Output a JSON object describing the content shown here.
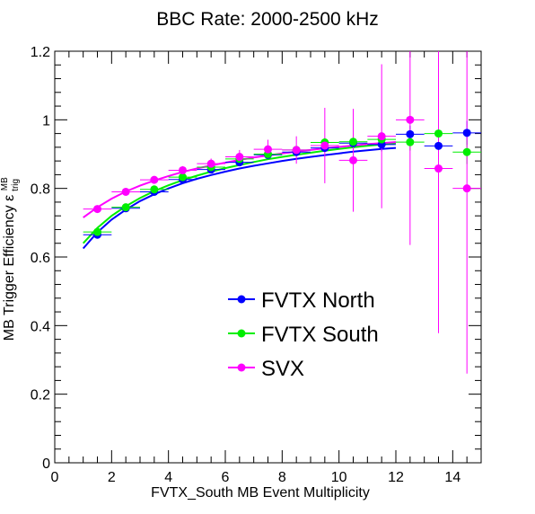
{
  "chart_data": {
    "type": "scatter",
    "title": "BBC Rate: 2000-2500 kHz",
    "xlabel": "FVTX_South MB Event Multiplicity",
    "ylabel": "MB Trigger Efficiency",
    "ylabel_symbol": {
      "base": "ε",
      "sup": "MB",
      "sub": "trig"
    },
    "xlim": [
      0,
      15
    ],
    "ylim": [
      0,
      1.2
    ],
    "x_ticks": [
      0,
      2,
      4,
      6,
      8,
      10,
      12,
      14
    ],
    "x_tick_labels": [
      "0",
      "2",
      "4",
      "6",
      "8",
      "10",
      "12",
      "14"
    ],
    "y_ticks": [
      0,
      0.2,
      0.4,
      0.6,
      0.8,
      1.0,
      1.2
    ],
    "y_tick_labels": [
      "0",
      "0.2",
      "0.4",
      "0.6",
      "0.8",
      "1",
      "1.2"
    ],
    "grid": false,
    "legend_position": "center",
    "series": [
      {
        "name": "FVTX North",
        "color": "#0000ff",
        "x": [
          1.5,
          2.5,
          3.5,
          4.5,
          5.5,
          6.5,
          7.5,
          8.5,
          9.5,
          10.5,
          11.5,
          12.5,
          13.5,
          14.5
        ],
        "y": [
          0.665,
          0.742,
          0.79,
          0.826,
          0.855,
          0.876,
          0.898,
          0.906,
          0.918,
          0.932,
          0.928,
          0.958,
          0.924,
          0.962
        ],
        "yerr": [
          0.006,
          0.006,
          0.006,
          0.006,
          0.007,
          0.008,
          0.009,
          0.011,
          0.013,
          0.016,
          0.02,
          0.025,
          0.03,
          0.035
        ],
        "fit": {
          "x": [
            1.0,
            1.5,
            2.0,
            2.5,
            3.0,
            3.5,
            4.0,
            4.5,
            5.0,
            5.5,
            6.0,
            6.5,
            7.0,
            7.5,
            8.0,
            8.5,
            9.0,
            9.5,
            10.0,
            10.5,
            11.0,
            11.5,
            12.0
          ],
          "y": [
            0.625,
            0.672,
            0.709,
            0.738,
            0.763,
            0.783,
            0.8,
            0.815,
            0.828,
            0.839,
            0.849,
            0.858,
            0.866,
            0.873,
            0.88,
            0.886,
            0.892,
            0.897,
            0.902,
            0.907,
            0.911,
            0.915,
            0.918
          ]
        }
      },
      {
        "name": "FVTX South",
        "color": "#00ee00",
        "x": [
          1.5,
          2.5,
          3.5,
          4.5,
          5.5,
          6.5,
          7.5,
          8.5,
          9.5,
          10.5,
          11.5,
          12.5,
          13.5,
          14.5
        ],
        "y": [
          0.673,
          0.745,
          0.797,
          0.833,
          0.862,
          0.886,
          0.9,
          0.912,
          0.934,
          0.936,
          0.943,
          0.935,
          0.96,
          0.906
        ],
        "yerr": [
          0.006,
          0.006,
          0.006,
          0.006,
          0.007,
          0.008,
          0.009,
          0.011,
          0.013,
          0.016,
          0.02,
          0.025,
          0.03,
          0.035
        ],
        "fit": {
          "x": [
            1.0,
            1.5,
            2.0,
            2.5,
            3.0,
            3.5,
            4.0,
            4.5,
            5.0,
            5.5,
            6.0,
            6.5,
            7.0,
            7.5,
            8.0,
            8.5,
            9.0,
            9.5,
            10.0,
            10.5,
            11.0,
            11.5,
            12.0
          ],
          "y": [
            0.64,
            0.685,
            0.72,
            0.748,
            0.772,
            0.792,
            0.809,
            0.824,
            0.837,
            0.849,
            0.859,
            0.868,
            0.877,
            0.885,
            0.892,
            0.898,
            0.904,
            0.91,
            0.915,
            0.92,
            0.924,
            0.928,
            0.932
          ]
        }
      },
      {
        "name": "SVX",
        "color": "#ff00ff",
        "x": [
          1.5,
          2.5,
          3.5,
          4.5,
          5.5,
          6.5,
          7.5,
          8.5,
          9.5,
          10.5,
          11.5,
          12.5,
          13.5,
          14.5
        ],
        "y": [
          0.74,
          0.79,
          0.825,
          0.853,
          0.872,
          0.892,
          0.914,
          0.912,
          0.925,
          0.882,
          0.952,
          1.0,
          0.858,
          0.8
        ],
        "yerr": [
          0.008,
          0.009,
          0.01,
          0.012,
          0.015,
          0.02,
          0.028,
          0.04,
          0.11,
          0.15,
          0.21,
          0.365,
          0.48,
          0.54
        ],
        "fit": {
          "x": [
            1.0,
            1.5,
            2.0,
            2.5,
            3.0,
            3.5,
            4.0,
            4.5,
            5.0,
            5.5,
            6.0,
            6.5,
            7.0,
            7.5,
            8.0,
            8.5,
            9.0,
            9.5,
            10.0,
            10.5,
            11.0,
            11.5,
            12.0
          ],
          "y": [
            0.715,
            0.745,
            0.77,
            0.791,
            0.808,
            0.823,
            0.836,
            0.848,
            0.858,
            0.867,
            0.875,
            0.883,
            0.89,
            0.896,
            0.902,
            0.907,
            0.912,
            0.917,
            0.921,
            0.925,
            0.929,
            0.932,
            0.935
          ]
        }
      }
    ]
  }
}
